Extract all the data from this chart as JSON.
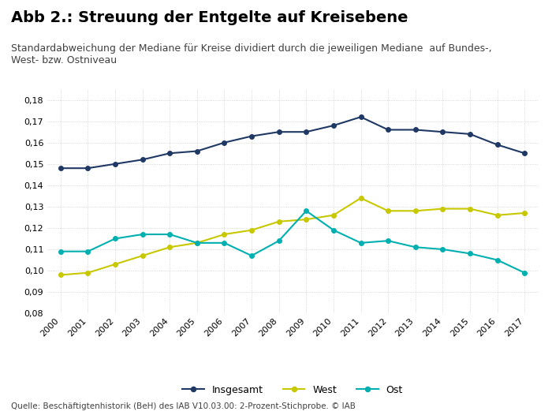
{
  "title": "Abb 2.: Streuung der Entgelte auf Kreisebene",
  "subtitle": "Standardabweichung der Mediane für Kreise dividiert durch die jeweiligen Mediane  auf Bundes-,\nWest- bzw. Ostniveau",
  "source": "Quelle: Beschäftigtenhistorik (BeH) des IAB V10.03.00: 2-Prozent-Stichprobe. © IAB",
  "years": [
    2000,
    2001,
    2002,
    2003,
    2004,
    2005,
    2006,
    2007,
    2008,
    2009,
    2010,
    2011,
    2012,
    2013,
    2014,
    2015,
    2016,
    2017
  ],
  "insgesamt": [
    0.148,
    0.148,
    0.15,
    0.152,
    0.155,
    0.156,
    0.16,
    0.163,
    0.165,
    0.165,
    0.168,
    0.172,
    0.166,
    0.166,
    0.165,
    0.164,
    0.159,
    0.155
  ],
  "west": [
    0.098,
    0.099,
    0.103,
    0.107,
    0.111,
    0.113,
    0.117,
    0.119,
    0.123,
    0.124,
    0.126,
    0.134,
    0.128,
    0.128,
    0.129,
    0.129,
    0.126,
    0.127
  ],
  "ost": [
    0.109,
    0.109,
    0.115,
    0.117,
    0.117,
    0.113,
    0.113,
    0.107,
    0.114,
    0.128,
    0.119,
    0.113,
    0.114,
    0.111,
    0.11,
    0.108,
    0.105,
    0.099
  ],
  "color_insgesamt": "#1f3864",
  "color_west": "#c8c800",
  "color_ost": "#00b0b0",
  "ylim_low": 0.08,
  "ylim_high": 0.185,
  "yticks": [
    0.08,
    0.09,
    0.1,
    0.11,
    0.12,
    0.13,
    0.14,
    0.15,
    0.16,
    0.17,
    0.18
  ],
  "background_color": "#ffffff",
  "grid_color": "#cccccc",
  "title_fontsize": 14,
  "subtitle_fontsize": 9,
  "axis_fontsize": 8,
  "legend_fontsize": 9,
  "source_fontsize": 7.5
}
